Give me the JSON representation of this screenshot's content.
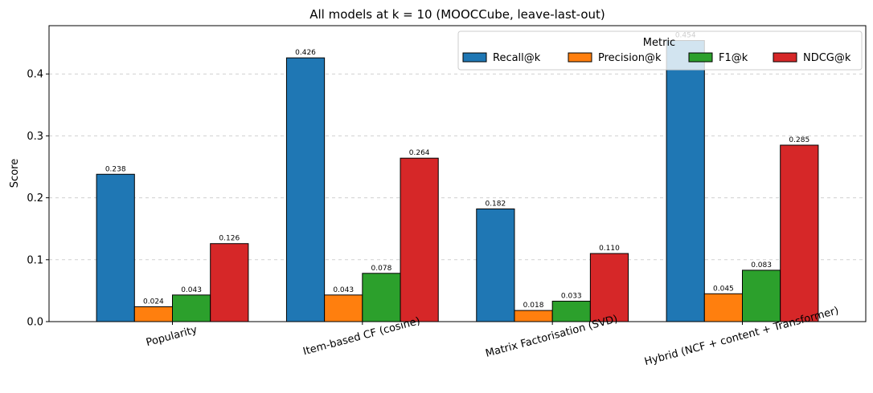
{
  "chart_data": {
    "type": "bar",
    "title": "All models at k = 10  (MOOCCube, leave-last-out)",
    "xlabel": "",
    "ylabel": "Score",
    "ylim": [
      0,
      0.478
    ],
    "yticks": [
      "0.0",
      "0.1",
      "0.2",
      "0.3",
      "0.4"
    ],
    "grid": "horizontal dashed",
    "legend": {
      "title": "Metric",
      "placement": "top-right"
    },
    "categories": [
      "Popularity",
      "Item-based CF (cosine)",
      "Matrix Factorisation (SVD)",
      "Hybrid (NCF + content + Transformer)"
    ],
    "series": [
      {
        "name": "Recall@k",
        "color": "#1f77b4",
        "values": [
          0.238,
          0.426,
          0.182,
          0.454
        ],
        "labels": [
          "0.238",
          "0.426",
          "0.182",
          "0.454"
        ]
      },
      {
        "name": "Precision@k",
        "color": "#ff7f0e",
        "values": [
          0.024,
          0.043,
          0.018,
          0.045
        ],
        "labels": [
          "0.024",
          "0.043",
          "0.018",
          "0.045"
        ]
      },
      {
        "name": "F1@k",
        "color": "#2ca02c",
        "values": [
          0.043,
          0.078,
          0.033,
          0.083
        ],
        "labels": [
          "0.043",
          "0.078",
          "0.033",
          "0.083"
        ]
      },
      {
        "name": "NDCG@k",
        "color": "#d62728",
        "values": [
          0.126,
          0.264,
          0.11,
          0.285
        ],
        "labels": [
          "0.126",
          "0.264",
          "0.110",
          "0.285"
        ]
      }
    ]
  }
}
